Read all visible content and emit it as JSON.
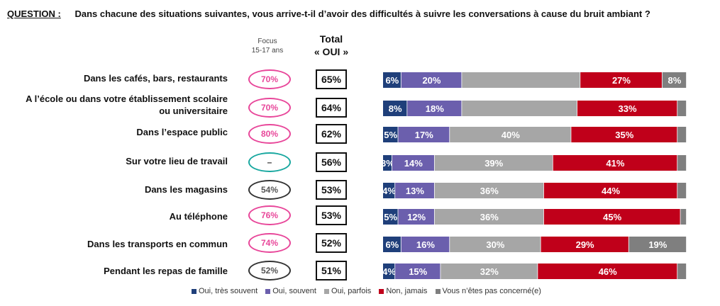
{
  "question": {
    "label": "QUESTION :",
    "text": "Dans chacune des situations suivantes, vous arrive-t-il d’avoir des difficultés à suivre les conversations à cause du bruit ambiant ?"
  },
  "headers": {
    "focus_line1": "Focus",
    "focus_line2": "15-17 ans",
    "total_line1": "Total",
    "total_line2": "« OUI »"
  },
  "rows": [
    {
      "label": "Dans les cafés, bars, restaurants",
      "focus": "70%",
      "focus_color": "#e8479a",
      "total": "65%"
    },
    {
      "label": "A l’école ou dans votre établissement scolaire ou universitaire",
      "focus": "70%",
      "focus_color": "#e8479a",
      "total": "64%"
    },
    {
      "label": "Dans l’espace public",
      "focus": "80%",
      "focus_color": "#e8479a",
      "total": "62%"
    },
    {
      "label": "Sur votre lieu de travail",
      "focus": "–",
      "focus_color": "#1aa8a0",
      "total": "56%"
    },
    {
      "label": "Dans les magasins",
      "focus": "54%",
      "focus_color": "#333333",
      "total": "53%"
    },
    {
      "label": "Au téléphone",
      "focus": "76%",
      "focus_color": "#e8479a",
      "total": "53%"
    },
    {
      "label": "Dans les transports en commun",
      "focus": "74%",
      "focus_color": "#e8479a",
      "total": "52%"
    },
    {
      "label": "Pendant les repas de famille",
      "focus": "52%",
      "focus_color": "#333333",
      "total": "51%"
    }
  ],
  "legend": [
    {
      "label": "Oui, très souvent",
      "color": "#1f3f7a"
    },
    {
      "label": "Oui, souvent",
      "color": "#6b5fad"
    },
    {
      "label": "Oui, parfois",
      "color": "#a6a6a6"
    },
    {
      "label": "Non, jamais",
      "color": "#c0001a"
    },
    {
      "label": "Vous n’êtes pas concerné(e)",
      "color": "#7f7f7f"
    }
  ],
  "chart_data": {
    "type": "bar",
    "orientation": "horizontal",
    "stacked": true,
    "xlim": [
      0,
      100
    ],
    "categories": [
      "Dans les cafés, bars, restaurants",
      "A l’école ou dans votre établissement scolaire ou universitaire",
      "Dans l’espace public",
      "Sur votre lieu de travail",
      "Dans les magasins",
      "Au téléphone",
      "Dans les transports en commun",
      "Pendant les repas de famille"
    ],
    "series": [
      {
        "name": "Oui, très souvent",
        "color": "#1f3f7a",
        "values": [
          6,
          8,
          5,
          3,
          4,
          5,
          6,
          4
        ]
      },
      {
        "name": "Oui, souvent",
        "color": "#6b5fad",
        "values": [
          20,
          18,
          17,
          14,
          13,
          12,
          16,
          15
        ]
      },
      {
        "name": "Oui, parfois",
        "color": "#a6a6a6",
        "values": [
          39,
          38,
          40,
          39,
          36,
          36,
          30,
          32
        ]
      },
      {
        "name": "Non, jamais",
        "color": "#c0001a",
        "values": [
          27,
          33,
          35,
          41,
          44,
          45,
          29,
          46
        ]
      },
      {
        "name": "Vous n’êtes pas concerné(e)",
        "color": "#7f7f7f",
        "values": [
          8,
          3,
          3,
          3,
          3,
          2,
          19,
          3
        ]
      }
    ],
    "value_labels": [
      [
        "6%",
        "20%",
        "",
        "27%",
        "8%"
      ],
      [
        "8%",
        "18%",
        "",
        "33%",
        ""
      ],
      [
        "5%",
        "17%",
        "40%",
        "35%",
        ""
      ],
      [
        "3%",
        "14%",
        "39%",
        "41%",
        ""
      ],
      [
        "4%",
        "13%",
        "36%",
        "44%",
        ""
      ],
      [
        "5%",
        "12%",
        "36%",
        "45%",
        ""
      ],
      [
        "6%",
        "16%",
        "30%",
        "29%",
        "19%"
      ],
      [
        "4%",
        "15%",
        "32%",
        "46%",
        ""
      ]
    ]
  }
}
